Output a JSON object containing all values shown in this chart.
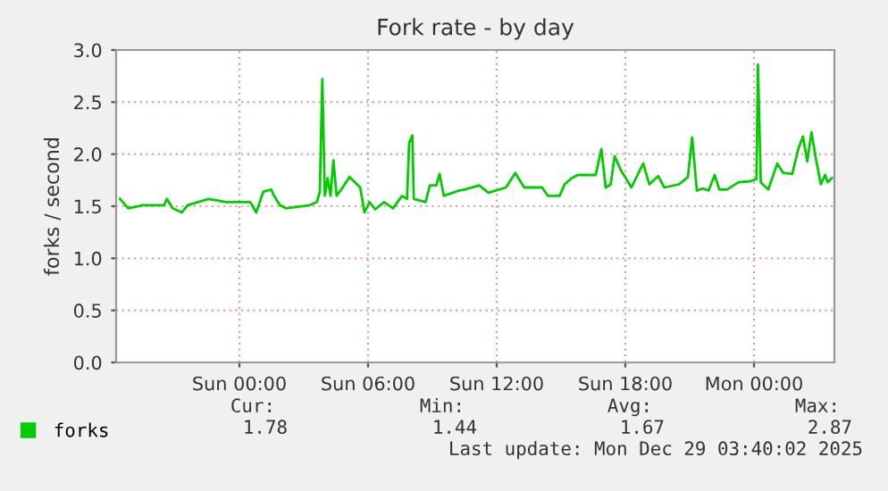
{
  "chart_data": {
    "type": "line",
    "title": "Fork rate - by day",
    "ylabel": "forks / second",
    "x": [
      "2025-12-27T18:26",
      "2025-12-27T18:49",
      "2025-12-27T19:30",
      "2025-12-27T20:29",
      "2025-12-27T20:37",
      "2025-12-27T20:53",
      "2025-12-27T21:19",
      "2025-12-27T21:35",
      "2025-12-27T22:34",
      "2025-12-27T23:23",
      "2025-12-28T00:30",
      "2025-12-28T00:47",
      "2025-12-28T01:07",
      "2025-12-28T01:29",
      "2025-12-28T01:37",
      "2025-12-28T01:53",
      "2025-12-28T02:10",
      "2025-12-28T03:17",
      "2025-12-28T03:37",
      "2025-12-28T03:45",
      "2025-12-28T03:52",
      "2025-12-28T03:59",
      "2025-12-28T04:07",
      "2025-12-28T04:15",
      "2025-12-28T04:23",
      "2025-12-28T04:32",
      "2025-12-28T04:49",
      "2025-12-28T05:08",
      "2025-12-28T05:38",
      "2025-12-28T05:50",
      "2025-12-28T06:04",
      "2025-12-28T06:20",
      "2025-12-28T06:45",
      "2025-12-28T07:10",
      "2025-12-28T07:35",
      "2025-12-28T07:49",
      "2025-12-28T07:55",
      "2025-12-28T08:04",
      "2025-12-28T08:08",
      "2025-12-28T08:41",
      "2025-12-28T08:53",
      "2025-12-28T09:11",
      "2025-12-28T09:20",
      "2025-12-28T09:32",
      "2025-12-28T10:14",
      "2025-12-28T10:30",
      "2025-12-28T11:11",
      "2025-12-28T11:37",
      "2025-12-28T12:26",
      "2025-12-28T12:52",
      "2025-12-28T13:17",
      "2025-12-28T14:07",
      "2025-12-28T14:23",
      "2025-12-28T14:56",
      "2025-12-28T15:10",
      "2025-12-28T15:30",
      "2025-12-28T15:47",
      "2025-12-28T16:37",
      "2025-12-28T16:53",
      "2025-12-28T17:05",
      "2025-12-28T17:19",
      "2025-12-28T17:30",
      "2025-12-28T17:47",
      "2025-12-28T18:17",
      "2025-12-28T18:50",
      "2025-12-28T19:07",
      "2025-12-28T19:32",
      "2025-12-28T19:49",
      "2025-12-28T20:30",
      "2025-12-28T20:55",
      "2025-12-28T21:07",
      "2025-12-28T21:20",
      "2025-12-28T21:37",
      "2025-12-28T21:53",
      "2025-12-28T22:10",
      "2025-12-28T22:23",
      "2025-12-28T22:44",
      "2025-12-28T23:17",
      "2025-12-28T23:50",
      "2025-12-29T00:07",
      "2025-12-29T00:11",
      "2025-12-29T00:19",
      "2025-12-29T00:40",
      "2025-12-29T01:05",
      "2025-12-29T01:22",
      "2025-12-29T01:47",
      "2025-12-29T02:04",
      "2025-12-29T02:17",
      "2025-12-29T02:29",
      "2025-12-29T02:41",
      "2025-12-29T02:53",
      "2025-12-29T03:07",
      "2025-12-29T03:19",
      "2025-12-29T03:26",
      "2025-12-29T03:38"
    ],
    "series": [
      {
        "name": "forks",
        "color": "#00cc00",
        "values": [
          1.57,
          1.48,
          1.51,
          1.51,
          1.57,
          1.48,
          1.44,
          1.51,
          1.57,
          1.54,
          1.54,
          1.44,
          1.64,
          1.66,
          1.6,
          1.51,
          1.48,
          1.51,
          1.54,
          1.64,
          2.72,
          1.6,
          1.77,
          1.6,
          1.94,
          1.6,
          1.68,
          1.78,
          1.68,
          1.44,
          1.54,
          1.47,
          1.54,
          1.48,
          1.6,
          1.57,
          2.11,
          2.18,
          1.57,
          1.54,
          1.7,
          1.7,
          1.81,
          1.6,
          1.65,
          1.66,
          1.7,
          1.63,
          1.68,
          1.82,
          1.68,
          1.68,
          1.6,
          1.6,
          1.71,
          1.77,
          1.8,
          1.8,
          2.05,
          1.68,
          1.71,
          1.98,
          1.85,
          1.68,
          1.91,
          1.71,
          1.79,
          1.68,
          1.71,
          1.78,
          2.16,
          1.65,
          1.67,
          1.65,
          1.8,
          1.66,
          1.66,
          1.73,
          1.74,
          1.76,
          2.86,
          1.73,
          1.66,
          1.91,
          1.82,
          1.81,
          2.05,
          2.17,
          1.93,
          2.21,
          1.96,
          1.71,
          1.8,
          1.73,
          1.77
        ]
      }
    ],
    "xlim": [
      "2025-12-27T18:15",
      "2025-12-29T03:45"
    ],
    "xticks": [
      {
        "value": "2025-12-28T00:00",
        "label": "Sun 00:00"
      },
      {
        "value": "2025-12-28T06:00",
        "label": "Sun 06:00"
      },
      {
        "value": "2025-12-28T12:00",
        "label": "Sun 12:00"
      },
      {
        "value": "2025-12-28T18:00",
        "label": "Sun 18:00"
      },
      {
        "value": "2025-12-29T00:00",
        "label": "Mon 00:00"
      }
    ],
    "ylim": [
      0,
      3
    ],
    "yticks": [
      {
        "value": 0,
        "label": "0.0"
      },
      {
        "value": 0.5,
        "label": "0.5"
      },
      {
        "value": 1,
        "label": "1.0"
      },
      {
        "value": 1.5,
        "label": "1.5"
      },
      {
        "value": 2,
        "label": "2.0"
      },
      {
        "value": 2.5,
        "label": "2.5"
      },
      {
        "value": 3,
        "label": "3.0"
      }
    ],
    "grid": true,
    "legend": "bottom left",
    "marker": "none",
    "line_style": "solid",
    "annotations": [
      "Cur:",
      "Min:",
      "Avg:",
      "Max:",
      "1.78",
      "1.44",
      "1.67",
      "2.87",
      "Last update: Mon Dec 29 03:40:02 2025"
    ]
  }
}
